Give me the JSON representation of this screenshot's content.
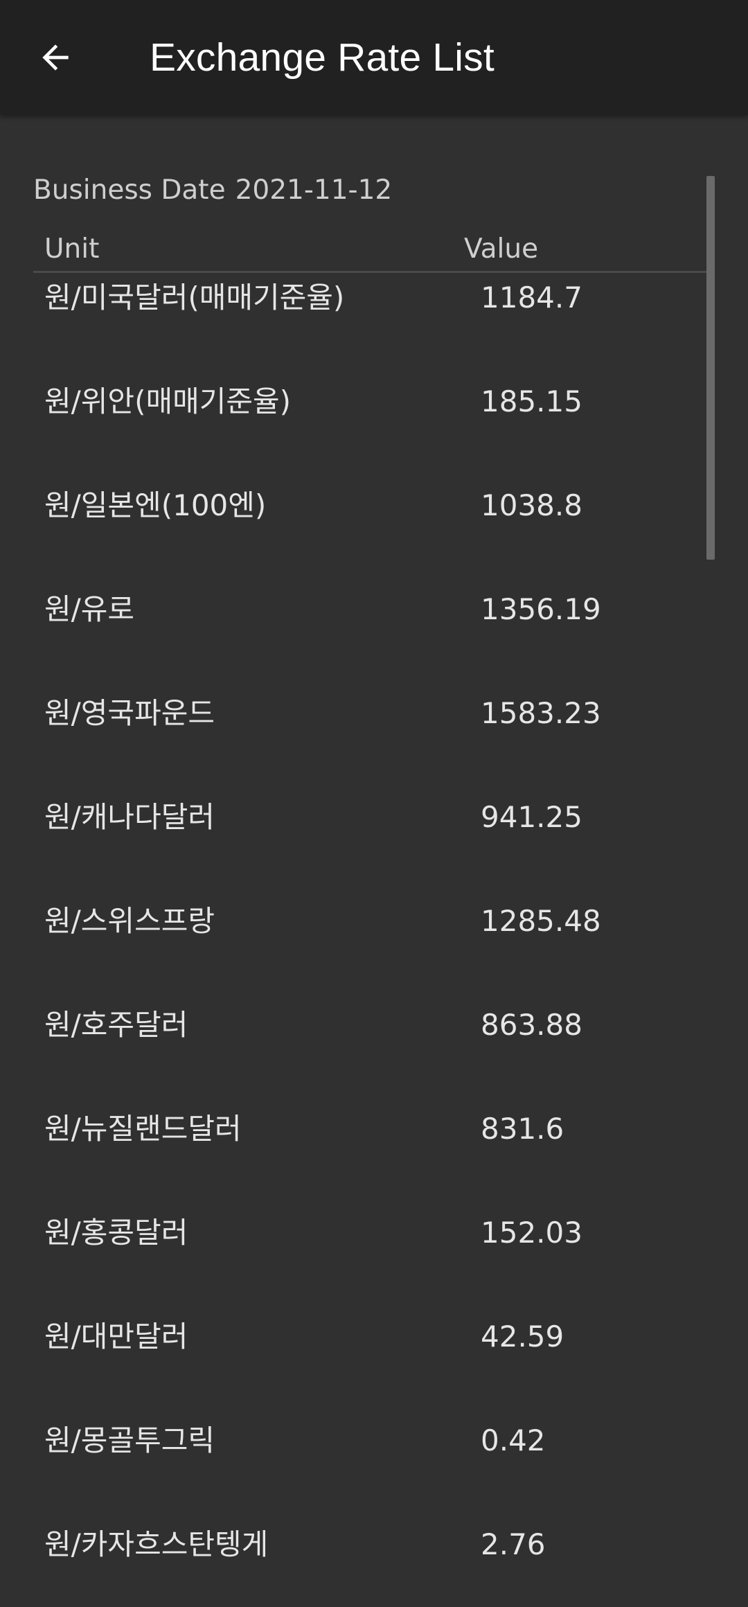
{
  "app_bar": {
    "title": "Exchange Rate List",
    "back_icon": "arrow-left-icon"
  },
  "business_date": {
    "label": "Business Date",
    "value": "2021-11-12"
  },
  "table": {
    "headers": {
      "unit": "Unit",
      "value": "Value"
    },
    "rows": [
      {
        "unit": "원/미국달러(매매기준율)",
        "value": "1184.7"
      },
      {
        "unit": "원/위안(매매기준율)",
        "value": "185.15"
      },
      {
        "unit": "원/일본엔(100엔)",
        "value": "1038.8"
      },
      {
        "unit": "원/유로",
        "value": "1356.19"
      },
      {
        "unit": "원/영국파운드",
        "value": "1583.23"
      },
      {
        "unit": "원/캐나다달러",
        "value": "941.25"
      },
      {
        "unit": "원/스위스프랑",
        "value": "1285.48"
      },
      {
        "unit": "원/호주달러",
        "value": "863.88"
      },
      {
        "unit": "원/뉴질랜드달러",
        "value": "831.6"
      },
      {
        "unit": "원/홍콩달러",
        "value": "152.03"
      },
      {
        "unit": "원/대만달러",
        "value": "42.59"
      },
      {
        "unit": "원/몽골투그릭",
        "value": "0.42"
      },
      {
        "unit": "원/카자흐스탄텡게",
        "value": "2.76"
      }
    ]
  },
  "colors": {
    "app_bar_bg": "#212121",
    "background": "#303030",
    "text_primary": "#ffffff",
    "text_secondary": "#cfcfcf"
  }
}
